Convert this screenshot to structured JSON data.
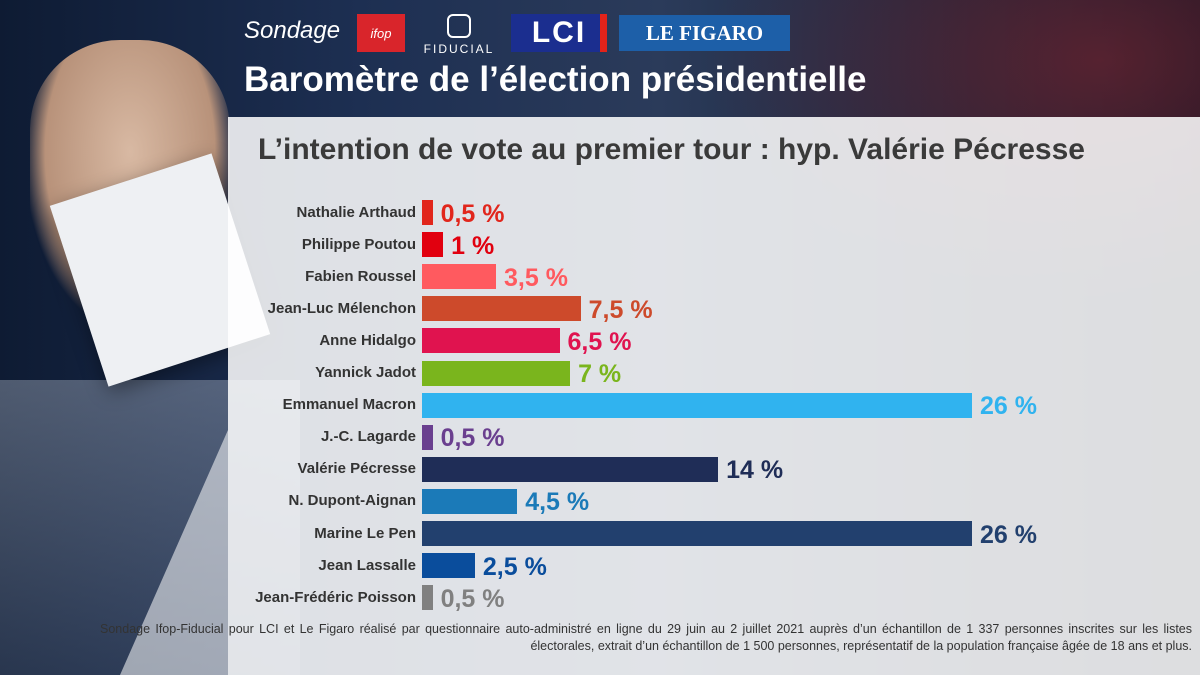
{
  "header": {
    "sondage": "Sondage",
    "logos": {
      "ifop": "ifop",
      "fiducial": "FIDUCIAL",
      "lci": "LCI",
      "figaro": "LE FIGARO"
    },
    "title": "Baromètre de l’élection présidentielle",
    "subtitle": "L’intention de vote au premier tour : hyp. Valérie Pécresse"
  },
  "chart_data": {
    "type": "bar",
    "orientation": "horizontal",
    "categories": [
      "Nathalie Arthaud",
      "Philippe Poutou",
      "Fabien Roussel",
      "Jean-Luc Mélenchon",
      "Anne Hidalgo",
      "Yannick Jadot",
      "Emmanuel Macron",
      "J.-C. Lagarde",
      "Valérie Pécresse",
      "N. Dupont-Aignan",
      "Marine Le Pen",
      "Jean Lassalle",
      "Jean-Frédéric Poisson"
    ],
    "values": [
      0.5,
      1,
      3.5,
      7.5,
      6.5,
      7,
      26,
      0.5,
      14,
      4.5,
      26,
      2.5,
      0.5
    ],
    "labels": [
      "0,5 %",
      "1 %",
      "3,5 %",
      "7,5 %",
      "6,5 %",
      "7 %",
      "26 %",
      "0,5 %",
      "14 %",
      "4,5 %",
      "26 %",
      "2,5 %",
      "0,5 %"
    ],
    "colors": [
      "#e1261c",
      "#e1000f",
      "#ff5a5f",
      "#cd4a2b",
      "#e0134f",
      "#7ab51d",
      "#30b3ef",
      "#6a3f8f",
      "#1f2d57",
      "#1b7ab8",
      "#22406e",
      "#0a4d9c",
      "#808080"
    ],
    "label_colors": [
      "#e1261c",
      "#e1000f",
      "#ff5a5f",
      "#cd4a2b",
      "#e0134f",
      "#7ab51d",
      "#30b3ef",
      "#6a3f8f",
      "#1f2d57",
      "#1b7ab8",
      "#22406e",
      "#0a4d9c",
      "#808080"
    ],
    "xlim": [
      0,
      26
    ],
    "grid": false
  },
  "footnote": "Sondage Ifop-Fiducial pour LCI et Le Figaro réalisé par questionnaire auto-administré en ligne du 29 juin au 2 juillet 2021 auprès d’un échantillon de 1 337 personnes inscrites sur les listes électorales, extrait d’un échantillon de 1 500 personnes, représentatif de la population française âgée de 18 ans et plus."
}
